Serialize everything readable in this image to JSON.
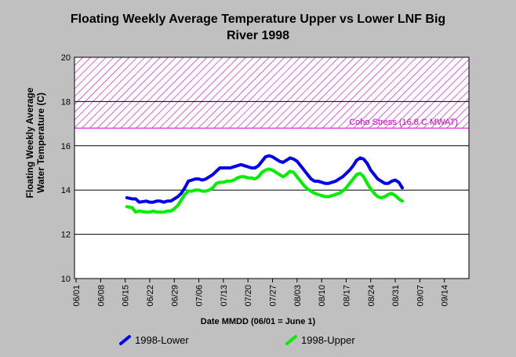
{
  "chart_data": {
    "type": "line",
    "title_lines": [
      "Floating Weekly Average Temperature Upper vs Lower LNF Big",
      "River 1998"
    ],
    "xlabel": "Date MMDD (06/01 = June 1)",
    "ylabel_lines": [
      "Floating Weekly Average",
      "Water Temperature (C)"
    ],
    "ylim": [
      10,
      20
    ],
    "yticks": [
      10,
      12,
      14,
      16,
      18,
      20
    ],
    "xlim": [
      0,
      112
    ],
    "xticks": [
      {
        "day": 0,
        "label": "06/01"
      },
      {
        "day": 7,
        "label": "06/08"
      },
      {
        "day": 14,
        "label": "06/15"
      },
      {
        "day": 21,
        "label": "06/22"
      },
      {
        "day": 28,
        "label": "06/29"
      },
      {
        "day": 35,
        "label": "07/06"
      },
      {
        "day": 42,
        "label": "07/13"
      },
      {
        "day": 49,
        "label": "07/20"
      },
      {
        "day": 56,
        "label": "07/27"
      },
      {
        "day": 63,
        "label": "08/03"
      },
      {
        "day": 70,
        "label": "08/10"
      },
      {
        "day": 77,
        "label": "08/17"
      },
      {
        "day": 84,
        "label": "08/24"
      },
      {
        "day": 91,
        "label": "08/31"
      },
      {
        "day": 98,
        "label": "09/07"
      },
      {
        "day": 105,
        "label": "09/14"
      }
    ],
    "grid": {
      "horizontal": true,
      "vertical": false
    },
    "threshold_band": {
      "from": 16.8,
      "to": 20,
      "label": "Coho Stress (16.8 C MWAT)",
      "color": "#cc00cc"
    },
    "series": [
      {
        "name": "1998-Lower",
        "color": "#0000ee",
        "points": [
          [
            14.5,
            13.65
          ],
          [
            16,
            13.6
          ],
          [
            17,
            13.6
          ],
          [
            18,
            13.45
          ],
          [
            20,
            13.5
          ],
          [
            21,
            13.45
          ],
          [
            22,
            13.45
          ],
          [
            23,
            13.5
          ],
          [
            24,
            13.5
          ],
          [
            25,
            13.45
          ],
          [
            26,
            13.5
          ],
          [
            27,
            13.5
          ],
          [
            28,
            13.6
          ],
          [
            29,
            13.7
          ],
          [
            30,
            13.85
          ],
          [
            31,
            14.1
          ],
          [
            32,
            14.4
          ],
          [
            33,
            14.45
          ],
          [
            34,
            14.5
          ],
          [
            35,
            14.5
          ],
          [
            36,
            14.45
          ],
          [
            37,
            14.5
          ],
          [
            38,
            14.6
          ],
          [
            39,
            14.7
          ],
          [
            40,
            14.85
          ],
          [
            41,
            15.0
          ],
          [
            42,
            15.0
          ],
          [
            43,
            15.0
          ],
          [
            44,
            15.0
          ],
          [
            45,
            15.05
          ],
          [
            46,
            15.1
          ],
          [
            47,
            15.15
          ],
          [
            48,
            15.1
          ],
          [
            49,
            15.05
          ],
          [
            50,
            15.0
          ],
          [
            51,
            15.0
          ],
          [
            52,
            15.1
          ],
          [
            53,
            15.3
          ],
          [
            54,
            15.5
          ],
          [
            55,
            15.55
          ],
          [
            56,
            15.5
          ],
          [
            57,
            15.4
          ],
          [
            58,
            15.3
          ],
          [
            59,
            15.25
          ],
          [
            60,
            15.35
          ],
          [
            61,
            15.45
          ],
          [
            62,
            15.4
          ],
          [
            63,
            15.3
          ],
          [
            64,
            15.1
          ],
          [
            65,
            14.9
          ],
          [
            66,
            14.7
          ],
          [
            67,
            14.5
          ],
          [
            68,
            14.4
          ],
          [
            69,
            14.4
          ],
          [
            70,
            14.35
          ],
          [
            71,
            14.3
          ],
          [
            72,
            14.3
          ],
          [
            73,
            14.35
          ],
          [
            74,
            14.4
          ],
          [
            75,
            14.5
          ],
          [
            76,
            14.6
          ],
          [
            77,
            14.75
          ],
          [
            78,
            14.9
          ],
          [
            79,
            15.1
          ],
          [
            80,
            15.35
          ],
          [
            81,
            15.45
          ],
          [
            82,
            15.4
          ],
          [
            83,
            15.2
          ],
          [
            84,
            14.9
          ],
          [
            85,
            14.7
          ],
          [
            86,
            14.5
          ],
          [
            87,
            14.4
          ],
          [
            88,
            14.3
          ],
          [
            89,
            14.3
          ],
          [
            90,
            14.4
          ],
          [
            91,
            14.45
          ],
          [
            92,
            14.35
          ],
          [
            93,
            14.1
          ]
        ]
      },
      {
        "name": "1998-Upper",
        "color": "#00ee00",
        "points": [
          [
            14.5,
            13.25
          ],
          [
            16,
            13.2
          ],
          [
            17,
            13.0
          ],
          [
            18,
            13.05
          ],
          [
            20,
            13.0
          ],
          [
            21,
            13.0
          ],
          [
            22,
            13.05
          ],
          [
            23,
            13.0
          ],
          [
            24,
            13.0
          ],
          [
            25,
            13.0
          ],
          [
            26,
            13.05
          ],
          [
            27,
            13.05
          ],
          [
            28,
            13.15
          ],
          [
            29,
            13.3
          ],
          [
            30,
            13.55
          ],
          [
            31,
            13.8
          ],
          [
            32,
            13.95
          ],
          [
            33,
            13.95
          ],
          [
            34,
            14.0
          ],
          [
            35,
            14.0
          ],
          [
            36,
            13.95
          ],
          [
            37,
            13.95
          ],
          [
            38,
            14.0
          ],
          [
            39,
            14.1
          ],
          [
            40,
            14.3
          ],
          [
            41,
            14.35
          ],
          [
            42,
            14.35
          ],
          [
            43,
            14.4
          ],
          [
            44,
            14.4
          ],
          [
            45,
            14.45
          ],
          [
            46,
            14.55
          ],
          [
            47,
            14.6
          ],
          [
            48,
            14.6
          ],
          [
            49,
            14.55
          ],
          [
            50,
            14.55
          ],
          [
            51,
            14.5
          ],
          [
            52,
            14.6
          ],
          [
            53,
            14.8
          ],
          [
            54,
            14.9
          ],
          [
            55,
            14.95
          ],
          [
            56,
            14.9
          ],
          [
            57,
            14.8
          ],
          [
            58,
            14.7
          ],
          [
            59,
            14.6
          ],
          [
            60,
            14.7
          ],
          [
            61,
            14.85
          ],
          [
            62,
            14.8
          ],
          [
            63,
            14.6
          ],
          [
            64,
            14.4
          ],
          [
            65,
            14.2
          ],
          [
            66,
            14.05
          ],
          [
            67,
            13.95
          ],
          [
            68,
            13.85
          ],
          [
            69,
            13.8
          ],
          [
            70,
            13.75
          ],
          [
            71,
            13.7
          ],
          [
            72,
            13.7
          ],
          [
            73,
            13.75
          ],
          [
            74,
            13.8
          ],
          [
            75,
            13.85
          ],
          [
            76,
            13.95
          ],
          [
            77,
            14.1
          ],
          [
            78,
            14.3
          ],
          [
            79,
            14.5
          ],
          [
            80,
            14.7
          ],
          [
            81,
            14.75
          ],
          [
            82,
            14.6
          ],
          [
            83,
            14.3
          ],
          [
            84,
            14.05
          ],
          [
            85,
            13.85
          ],
          [
            86,
            13.7
          ],
          [
            87,
            13.65
          ],
          [
            88,
            13.7
          ],
          [
            89,
            13.8
          ],
          [
            90,
            13.85
          ],
          [
            91,
            13.75
          ],
          [
            92,
            13.6
          ],
          [
            93,
            13.5
          ]
        ]
      }
    ]
  }
}
